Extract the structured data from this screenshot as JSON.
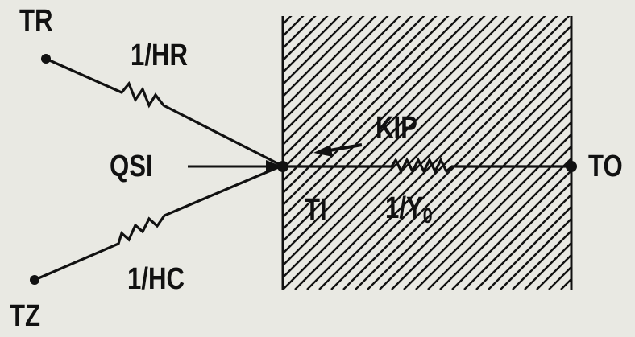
{
  "labels": {
    "tr": "TR",
    "tz": "TZ",
    "hr": "1/HR",
    "hc": "1/HC",
    "qsi": "QSI",
    "kip": "KIP",
    "ti": "TI",
    "to": "TO",
    "y0_prefix": "1/Y",
    "y0_sub": "0"
  },
  "colors": {
    "ink": "#111111",
    "background": "#e9e9e3"
  }
}
